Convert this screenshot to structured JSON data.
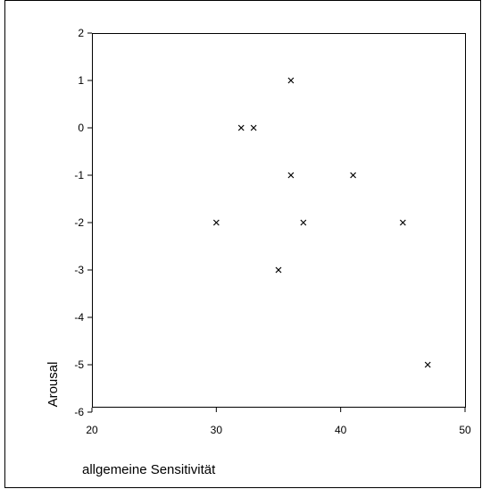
{
  "chart_data": {
    "type": "scatter",
    "title": "",
    "xlabel": "allgemeine Sensitivität",
    "ylabel": "Arousal",
    "xlim": [
      20,
      50
    ],
    "ylim": [
      -6,
      2
    ],
    "xticks": [
      20,
      30,
      40,
      50
    ],
    "yticks": [
      2,
      1,
      0,
      -1,
      -2,
      -3,
      -4,
      -5,
      -6
    ],
    "grid": false,
    "marker": "x",
    "series": [
      {
        "points": [
          {
            "x": 30,
            "y": -2
          },
          {
            "x": 32,
            "y": 0
          },
          {
            "x": 33,
            "y": 0
          },
          {
            "x": 35,
            "y": -3
          },
          {
            "x": 36,
            "y": 1
          },
          {
            "x": 36,
            "y": -1
          },
          {
            "x": 37,
            "y": -2
          },
          {
            "x": 41,
            "y": -1
          },
          {
            "x": 45,
            "y": -2
          },
          {
            "x": 47,
            "y": -5
          }
        ]
      }
    ],
    "colors": {
      "marker": "#000000",
      "frame": "#000000",
      "background": "#ffffff"
    }
  }
}
